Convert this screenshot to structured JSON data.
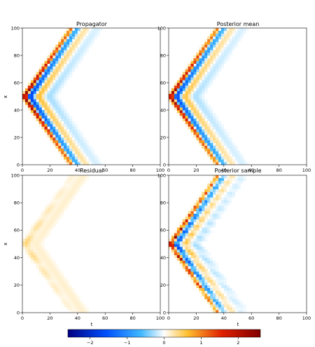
{
  "chart_data": {
    "type": "heatmap",
    "panels": [
      {
        "title": "Propagator",
        "xlabel": "",
        "ylabel": "x",
        "xlim": [
          0,
          100
        ],
        "ylim": [
          0,
          100
        ],
        "xticks": [
          "0",
          "20",
          "40",
          "60",
          "80",
          "100"
        ],
        "yticks": [
          "0",
          "20",
          "40",
          "60",
          "80",
          "100"
        ],
        "pattern": {
          "source_x": 50,
          "wave_speed": 1.45,
          "peak_amplitude": 2.6,
          "ring_bands": [
            "red",
            "blue",
            "orange",
            "light-blue"
          ]
        }
      },
      {
        "title": "Posterior mean",
        "xlabel": "",
        "ylabel": "",
        "xlim": [
          0,
          100
        ],
        "ylim": [
          0,
          100
        ],
        "xticks": [
          "0",
          "20",
          "40",
          "60",
          "80",
          "100"
        ],
        "yticks": [
          "0",
          "20",
          "40",
          "60",
          "80",
          "100"
        ],
        "pattern": {
          "source_x": 50,
          "wave_speed": 1.45,
          "peak_amplitude": 2.4,
          "ring_bands": [
            "red",
            "blue",
            "orange",
            "light-blue"
          ]
        }
      },
      {
        "title": "Residual",
        "xlabel": "t",
        "ylabel": "x",
        "xlim": [
          0,
          100
        ],
        "ylim": [
          0,
          100
        ],
        "xticks": [
          "0",
          "20",
          "40",
          "60",
          "80",
          "100"
        ],
        "yticks": [
          "0",
          "20",
          "40",
          "60",
          "80",
          "100"
        ],
        "pattern": {
          "source_x": 50,
          "wave_speed": 1.45,
          "peak_amplitude": 0.8,
          "ring_bands": [
            "orange",
            "light-orange"
          ]
        }
      },
      {
        "title": "Posterior sample",
        "xlabel": "t",
        "ylabel": "",
        "xlim": [
          0,
          100
        ],
        "ylim": [
          0,
          100
        ],
        "xticks": [
          "0",
          "20",
          "40",
          "60",
          "80",
          "100"
        ],
        "yticks": [
          "0",
          "20",
          "40",
          "60",
          "80",
          "100"
        ],
        "pattern": {
          "source_x": 50,
          "wave_speed": 1.45,
          "peak_amplitude": 2.4,
          "ring_bands": [
            "red",
            "blue",
            "orange",
            "light-blue"
          ]
        }
      }
    ],
    "colorbar": {
      "vmin": -2.6,
      "vmax": 2.6,
      "ticks": [
        -2,
        -1,
        0,
        1,
        2
      ],
      "tick_labels": [
        "−2",
        "−1",
        "0",
        "1",
        "2"
      ],
      "colormap": [
        "#000080",
        "#0050ff",
        "#40b8ff",
        "#ffffff",
        "#ffc030",
        "#e02000",
        "#800000"
      ]
    }
  }
}
